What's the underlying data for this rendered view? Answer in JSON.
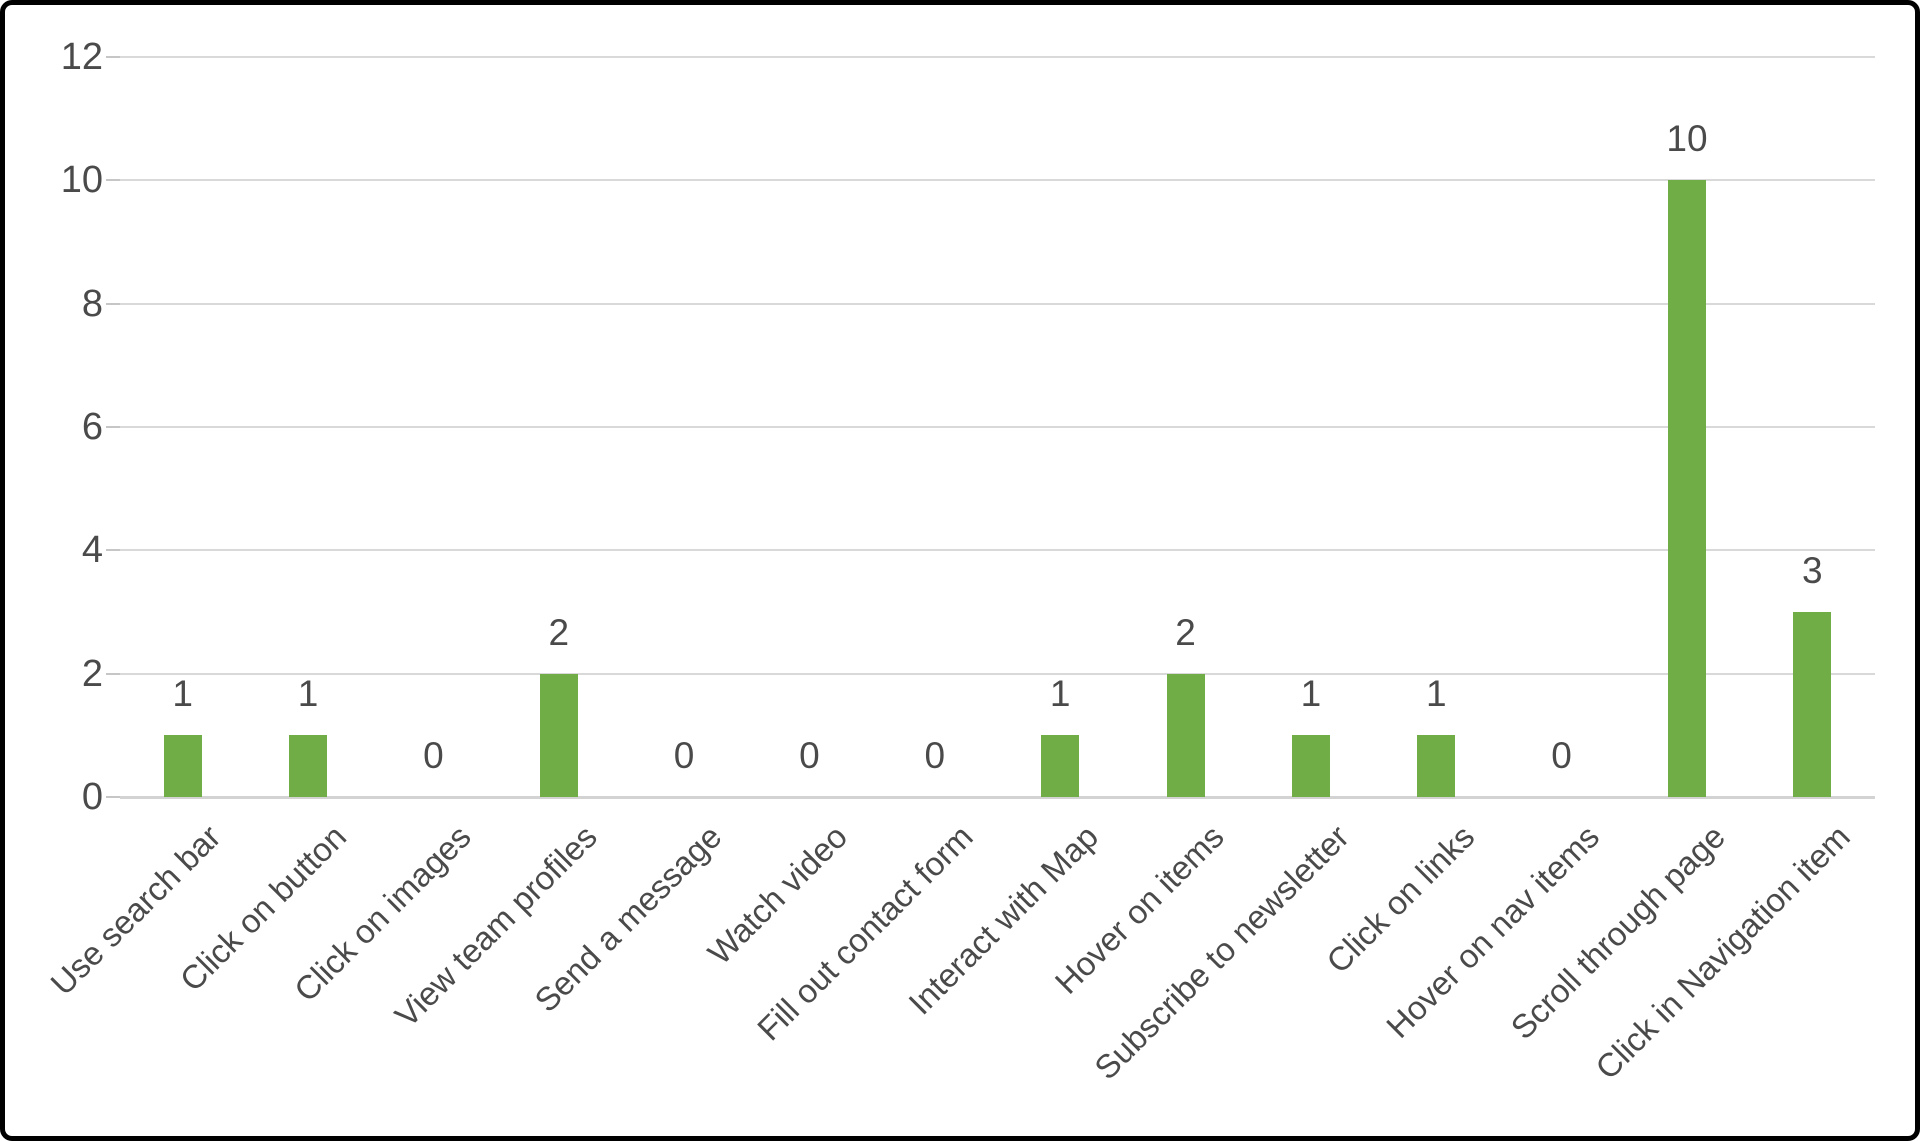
{
  "chart_data": {
    "type": "bar",
    "categories": [
      "Use search bar",
      "Click on button",
      "Click on images",
      "View team profiles",
      "Send a message",
      "Watch video",
      "Fill out contact form",
      "Interact with Map",
      "Hover on items",
      "Subscribe to newsletter",
      "Click on links",
      "Hover on nav items",
      "Scroll through page",
      "Click in Navigation item"
    ],
    "values": [
      1,
      1,
      0,
      2,
      0,
      0,
      0,
      1,
      2,
      1,
      1,
      0,
      10,
      3
    ],
    "data_labels": [
      "1",
      "1",
      "0",
      "2",
      "0",
      "0",
      "0",
      "1",
      "2",
      "1",
      "1",
      "0",
      "10",
      "3"
    ],
    "ytick_labels": [
      "0",
      "2",
      "4",
      "6",
      "8",
      "10",
      "12"
    ],
    "title": "",
    "xlabel": "",
    "ylabel": "",
    "ylim": [
      0,
      12
    ],
    "ytick_step": 2,
    "grid": true,
    "legend": "none",
    "bar_color": "#70AD47",
    "gridline_color": "#D9D9D9",
    "tick_color": "#C6C6C6",
    "label_color": "#4A4A4A",
    "frame_border_color": "#000000",
    "background_color": "#FFFFFF"
  }
}
